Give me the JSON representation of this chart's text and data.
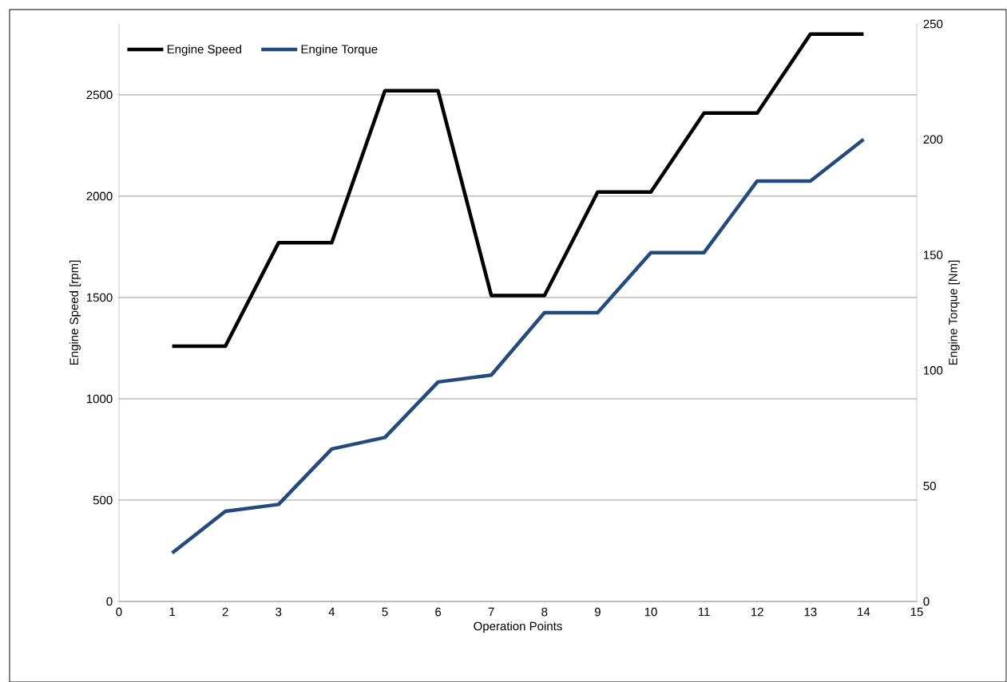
{
  "chart_data": {
    "type": "line",
    "xlabel": "Operation Points",
    "ylabel": "Engine Speed [rpm]",
    "y2label": "Engine Torque [Nm]",
    "x": [
      1,
      2,
      3,
      4,
      5,
      6,
      7,
      8,
      9,
      10,
      11,
      12,
      13,
      14
    ],
    "series": [
      {
        "name": "Engine Speed",
        "color": "#000000",
        "values": [
          1260,
          1260,
          1770,
          1770,
          2520,
          2520,
          1510,
          1510,
          2020,
          2020,
          2410,
          2410,
          2800,
          2800
        ]
      },
      {
        "name": "Engine Torque",
        "color": "#254b7d",
        "axis": "y2",
        "values": [
          21,
          39,
          42,
          66,
          71,
          95,
          98,
          125,
          125,
          151,
          151,
          182,
          182,
          200
        ]
      }
    ],
    "xlim": [
      0,
      15
    ],
    "xticks": [
      0,
      1,
      2,
      3,
      4,
      5,
      6,
      7,
      8,
      9,
      10,
      11,
      12,
      13,
      14,
      15
    ],
    "ylim": [
      0,
      2850
    ],
    "yticks": [
      0,
      500,
      1000,
      1500,
      2000,
      2500
    ],
    "y2lim": [
      0,
      250
    ],
    "y2ticks": [
      0,
      50,
      100,
      150,
      200,
      250
    ],
    "grid": "y",
    "legend": "top left",
    "marker": "none",
    "line_style": "solid"
  }
}
